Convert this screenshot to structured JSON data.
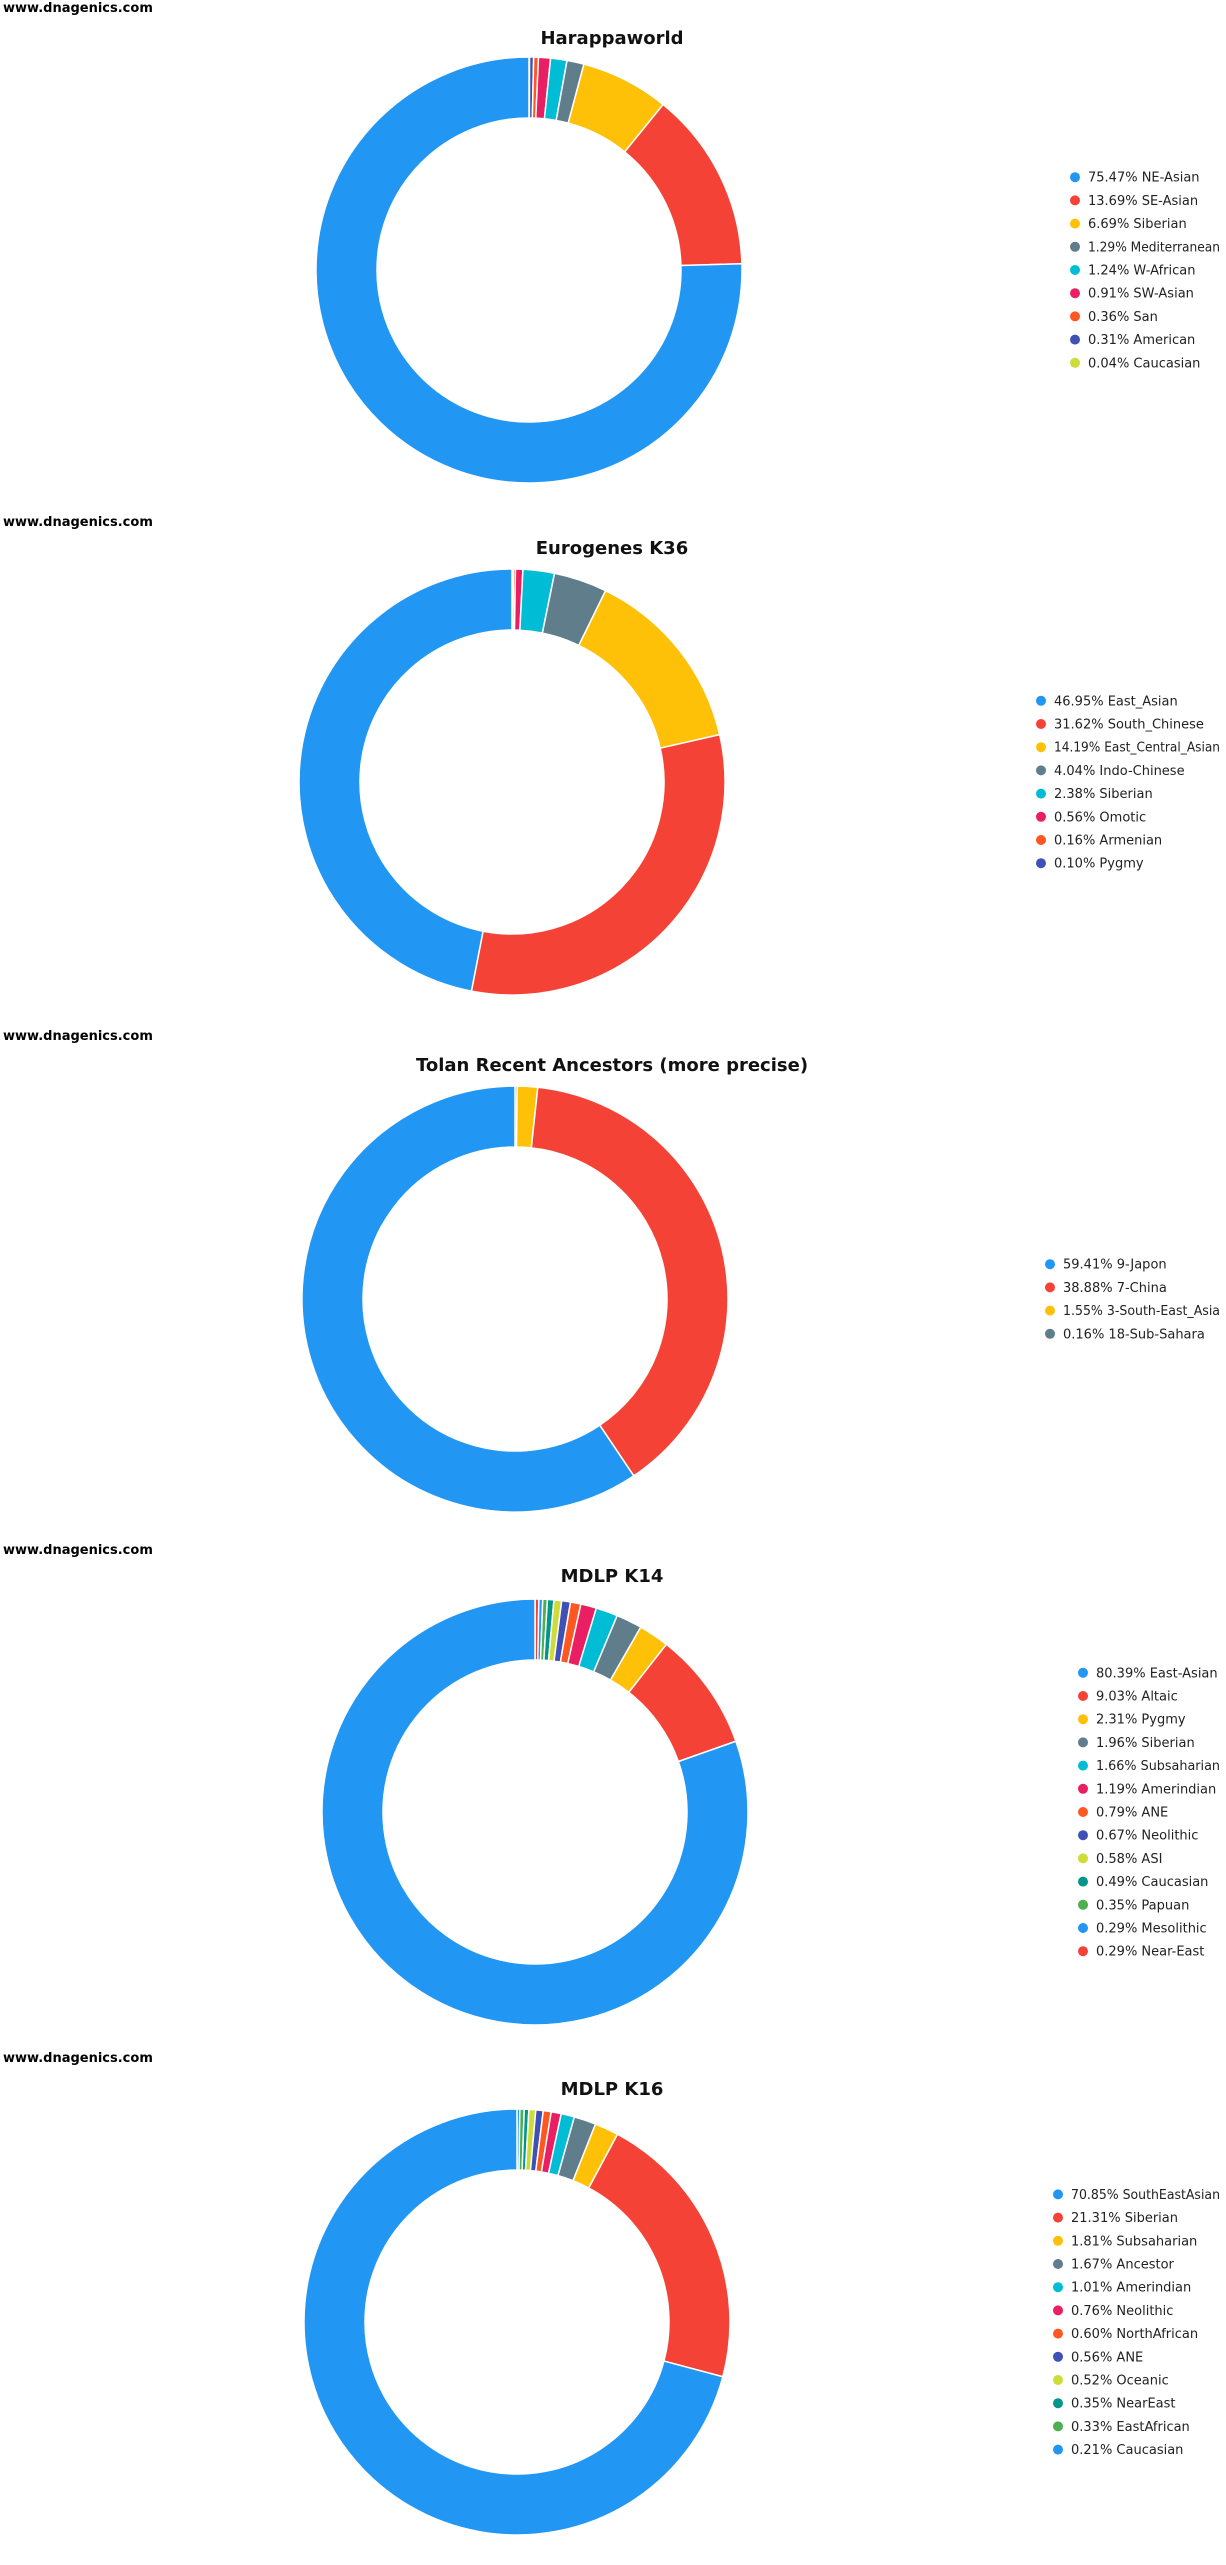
{
  "site_label": "www.dnagenics.com",
  "chart_data": [
    {
      "type": "pie",
      "title": "Harappaworld",
      "series": [
        {
          "label": "75.47% NE-Asian",
          "value": 75.47,
          "color": "#2196f3"
        },
        {
          "label": "13.69% SE-Asian",
          "value": 13.69,
          "color": "#f44336"
        },
        {
          "label": "6.69% Siberian",
          "value": 6.69,
          "color": "#ffc107"
        },
        {
          "label": "1.29% Mediterranean",
          "value": 1.29,
          "color": "#607d8b"
        },
        {
          "label": "1.24% W-African",
          "value": 1.24,
          "color": "#00bcd4"
        },
        {
          "label": "0.91% SW-Asian",
          "value": 0.91,
          "color": "#e91e63"
        },
        {
          "label": "0.36% San",
          "value": 0.36,
          "color": "#ff5722"
        },
        {
          "label": "0.31% American",
          "value": 0.31,
          "color": "#3f51b5"
        },
        {
          "label": "0.04% Caucasian",
          "value": 0.04,
          "color": "#cddc39"
        }
      ]
    },
    {
      "type": "pie",
      "title": "Eurogenes K36",
      "series": [
        {
          "label": "46.95% East_Asian",
          "value": 46.95,
          "color": "#2196f3"
        },
        {
          "label": "31.62% South_Chinese",
          "value": 31.62,
          "color": "#f44336"
        },
        {
          "label": "14.19% East_Central_Asian",
          "value": 14.19,
          "color": "#ffc107"
        },
        {
          "label": "4.04% Indo-Chinese",
          "value": 4.04,
          "color": "#607d8b"
        },
        {
          "label": "2.38% Siberian",
          "value": 2.38,
          "color": "#00bcd4"
        },
        {
          "label": "0.56% Omotic",
          "value": 0.56,
          "color": "#e91e63"
        },
        {
          "label": "0.16% Armenian",
          "value": 0.16,
          "color": "#ff5722"
        },
        {
          "label": "0.10% Pygmy",
          "value": 0.1,
          "color": "#3f51b5"
        }
      ]
    },
    {
      "type": "pie",
      "title": "Tolan Recent Ancestors (more precise)",
      "series": [
        {
          "label": "59.41% 9-Japon",
          "value": 59.41,
          "color": "#2196f3"
        },
        {
          "label": "38.88% 7-China",
          "value": 38.88,
          "color": "#f44336"
        },
        {
          "label": "1.55% 3-South-East_Asia",
          "value": 1.55,
          "color": "#ffc107"
        },
        {
          "label": "0.16% 18-Sub-Sahara",
          "value": 0.16,
          "color": "#607d8b"
        }
      ]
    },
    {
      "type": "pie",
      "title": "MDLP K14",
      "series": [
        {
          "label": "80.39% East-Asian",
          "value": 80.39,
          "color": "#2196f3"
        },
        {
          "label": "9.03% Altaic",
          "value": 9.03,
          "color": "#f44336"
        },
        {
          "label": "2.31% Pygmy",
          "value": 2.31,
          "color": "#ffc107"
        },
        {
          "label": "1.96% Siberian",
          "value": 1.96,
          "color": "#607d8b"
        },
        {
          "label": "1.66% Subsaharian",
          "value": 1.66,
          "color": "#00bcd4"
        },
        {
          "label": "1.19% Amerindian",
          "value": 1.19,
          "color": "#e91e63"
        },
        {
          "label": "0.79% ANE",
          "value": 0.79,
          "color": "#ff5722"
        },
        {
          "label": "0.67% Neolithic",
          "value": 0.67,
          "color": "#3f51b5"
        },
        {
          "label": "0.58% ASI",
          "value": 0.58,
          "color": "#cddc39"
        },
        {
          "label": "0.49% Caucasian",
          "value": 0.49,
          "color": "#009688"
        },
        {
          "label": "0.35% Papuan",
          "value": 0.35,
          "color": "#4caf50"
        },
        {
          "label": "0.29% Mesolithic",
          "value": 0.29,
          "color": "#2196f3"
        },
        {
          "label": "0.29% Near-East",
          "value": 0.29,
          "color": "#f44336"
        }
      ]
    },
    {
      "type": "pie",
      "title": "MDLP K16",
      "series": [
        {
          "label": "70.85% SouthEastAsian",
          "value": 70.85,
          "color": "#2196f3"
        },
        {
          "label": "21.31% Siberian",
          "value": 21.31,
          "color": "#f44336"
        },
        {
          "label": "1.81% Subsaharian",
          "value": 1.81,
          "color": "#ffc107"
        },
        {
          "label": "1.67% Ancestor",
          "value": 1.67,
          "color": "#607d8b"
        },
        {
          "label": "1.01% Amerindian",
          "value": 1.01,
          "color": "#00bcd4"
        },
        {
          "label": "0.76% Neolithic",
          "value": 0.76,
          "color": "#e91e63"
        },
        {
          "label": "0.60% NorthAfrican",
          "value": 0.6,
          "color": "#ff5722"
        },
        {
          "label": "0.56% ANE",
          "value": 0.56,
          "color": "#3f51b5"
        },
        {
          "label": "0.52% Oceanic",
          "value": 0.52,
          "color": "#cddc39"
        },
        {
          "label": "0.35% NearEast",
          "value": 0.35,
          "color": "#009688"
        },
        {
          "label": "0.33% EastAfrican",
          "value": 0.33,
          "color": "#4caf50"
        },
        {
          "label": "0.21% Caucasian",
          "value": 0.21,
          "color": "#2196f3"
        }
      ]
    }
  ]
}
